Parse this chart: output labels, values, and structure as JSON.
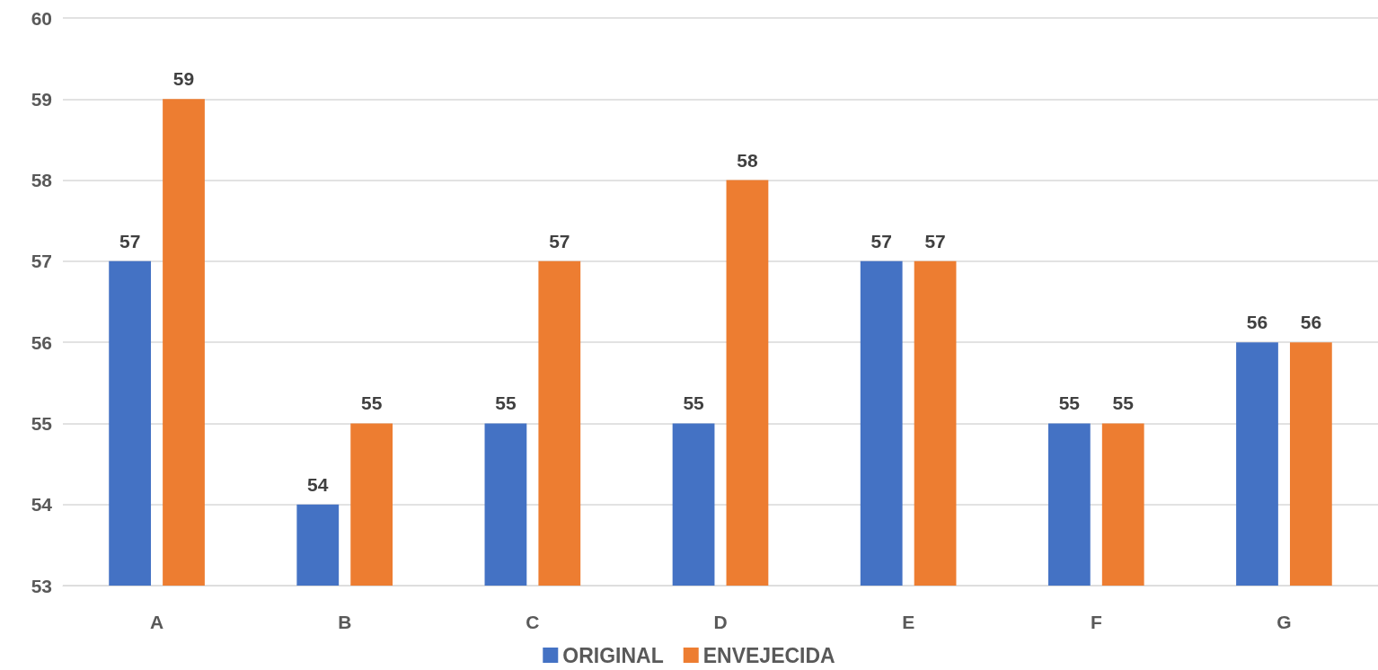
{
  "chart_data": {
    "type": "bar",
    "categories": [
      "A",
      "B",
      "C",
      "D",
      "E",
      "F",
      "G"
    ],
    "series": [
      {
        "name": "ORIGINAL",
        "color": "#4472c4",
        "values": [
          57,
          54,
          55,
          55,
          57,
          55,
          56
        ]
      },
      {
        "name": "ENVEJECIDA",
        "color": "#ed7d31",
        "values": [
          59,
          55,
          57,
          58,
          57,
          55,
          56
        ]
      }
    ],
    "ylim": [
      53,
      60
    ],
    "yticks": [
      53,
      54,
      55,
      56,
      57,
      58,
      59,
      60
    ],
    "grid": "y",
    "legend": "bottom",
    "data_labels": true
  }
}
